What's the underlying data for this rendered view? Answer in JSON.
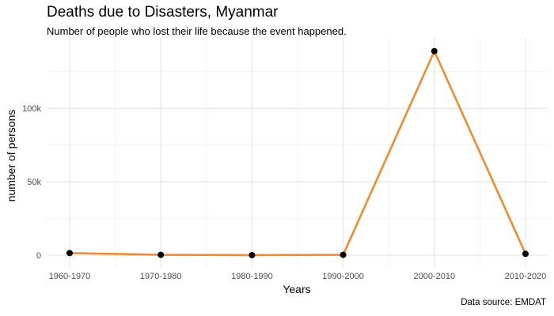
{
  "chart_data": {
    "type": "line",
    "title": "Deaths due to Disasters, Myanmar",
    "subtitle": "Number of people who lost their life because the event happened.",
    "caption": "Data source: EMDAT",
    "xlabel": "Years",
    "ylabel": "number of persons",
    "categories": [
      "1960-1970",
      "1970-1980",
      "1980-1990",
      "1990-2000",
      "2000-2010",
      "2010-2020"
    ],
    "values": [
      1500,
      300,
      100,
      300,
      139000,
      1000
    ],
    "ylim": [
      -8000,
      148000
    ],
    "yticks": [
      0,
      50000,
      100000
    ],
    "ytick_labels": [
      "0",
      "50k",
      "100k"
    ],
    "grid": true,
    "line_color": "#f58a2c",
    "point_color": "#000000",
    "background": "#ffffff"
  }
}
